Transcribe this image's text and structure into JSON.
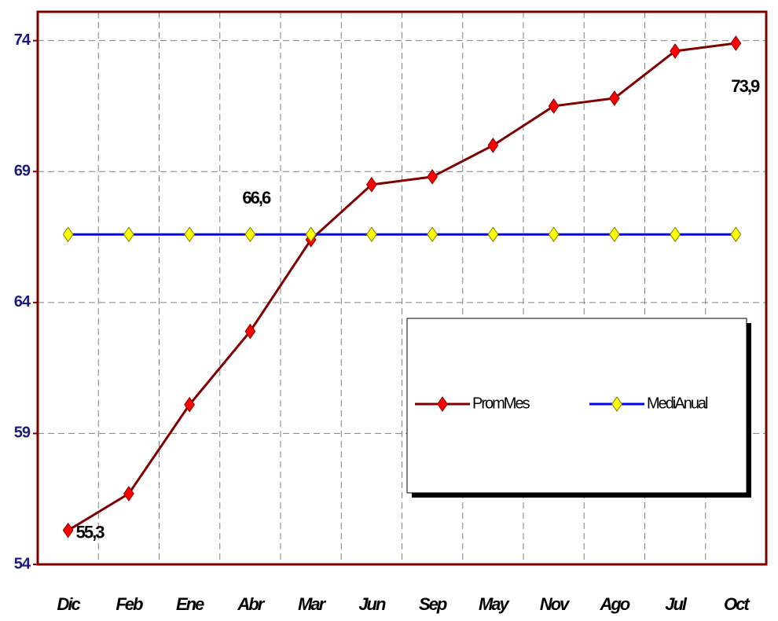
{
  "chart_data": {
    "type": "line",
    "categories": [
      "Dic",
      "Feb",
      "Ene",
      "Abr",
      "Mar",
      "Jun",
      "Sep",
      "May",
      "Nov",
      "Ago",
      "Jul",
      "Oct"
    ],
    "series": [
      {
        "name": "PromMes",
        "color": "#800000",
        "marker_color": "#ff0000",
        "values": [
          55.3,
          56.7,
          60.1,
          62.9,
          66.4,
          68.5,
          68.8,
          70.0,
          71.5,
          71.8,
          73.6,
          73.9
        ],
        "value_labels": [
          "55,3",
          null,
          null,
          null,
          null,
          null,
          null,
          null,
          null,
          null,
          null,
          "73,9"
        ]
      },
      {
        "name": "MediAnual",
        "color": "#0000ff",
        "marker_color": "#ffff00",
        "values": [
          66.6,
          66.6,
          66.6,
          66.6,
          66.6,
          66.6,
          66.6,
          66.6,
          66.6,
          66.6,
          66.6,
          66.6
        ],
        "value_labels": [
          null,
          null,
          null,
          "66,6",
          null,
          null,
          null,
          null,
          null,
          null,
          null,
          null
        ]
      }
    ],
    "ylim": [
      54,
      75.1
    ],
    "yticks": [
      54,
      59,
      64,
      69,
      74
    ],
    "grid": true
  }
}
